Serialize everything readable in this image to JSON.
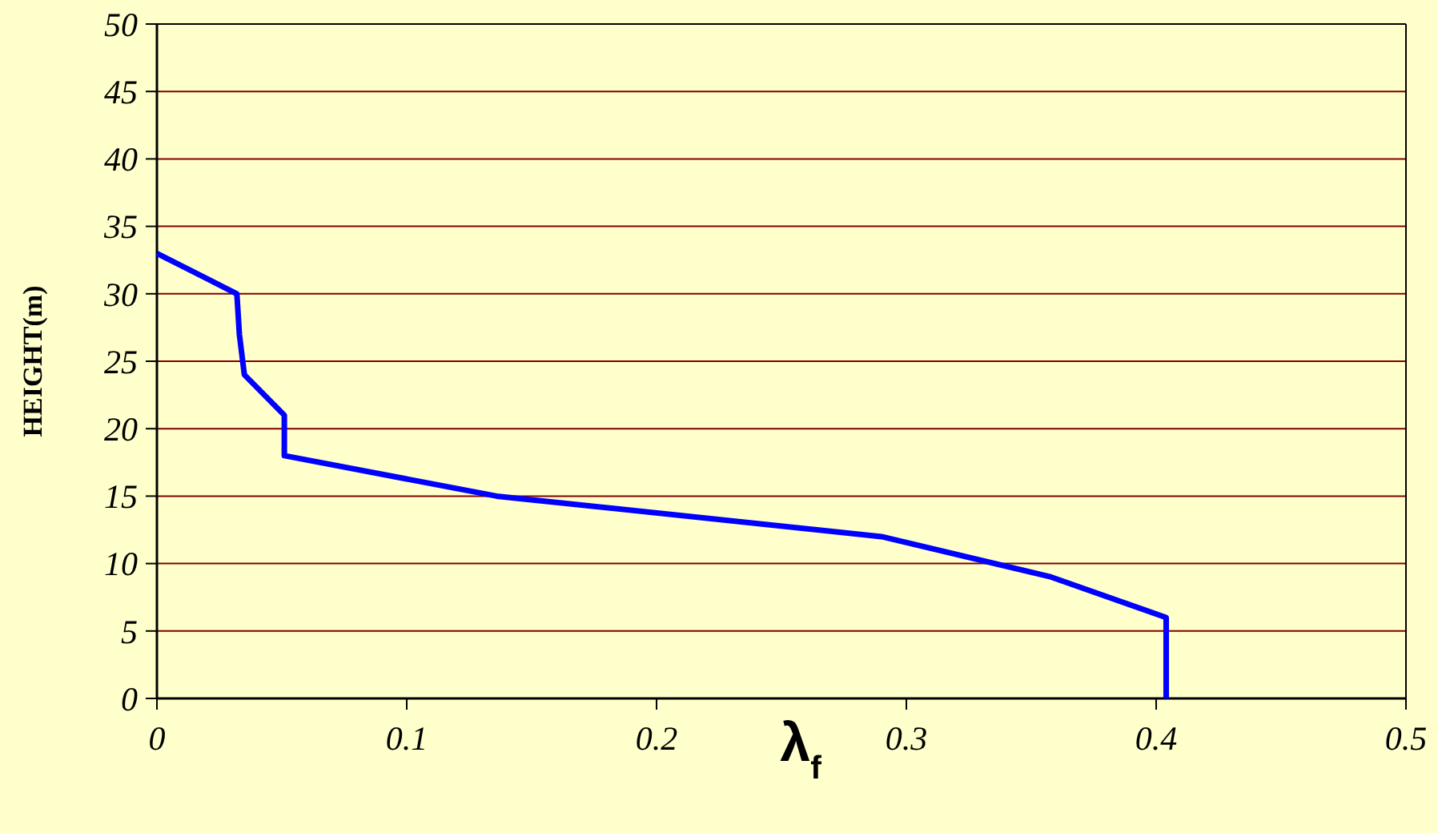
{
  "chart_data": {
    "type": "line",
    "xlabel": "λ$_{f}$",
    "ylabel": "HEIGHT(m)",
    "x": [
      0,
      0.032,
      0.033,
      0.035,
      0.051,
      0.051,
      0.136,
      0.29,
      0.358,
      0.404,
      0.404
    ],
    "series": [
      {
        "color": "#0000ff",
        "values": [
          33,
          30,
          27,
          24,
          21,
          18,
          15,
          12,
          9,
          6,
          0
        ]
      }
    ],
    "xlim": [
      0,
      0.5
    ],
    "xticks": [
      0,
      0.1,
      0.2,
      0.3,
      0.4,
      0.5
    ],
    "ylim": [
      0,
      50
    ],
    "yticks": [
      0,
      5,
      10,
      15,
      20,
      25,
      30,
      35,
      40,
      45,
      50
    ],
    "grid": "y",
    "marker": "none",
    "line_style": "solid"
  }
}
